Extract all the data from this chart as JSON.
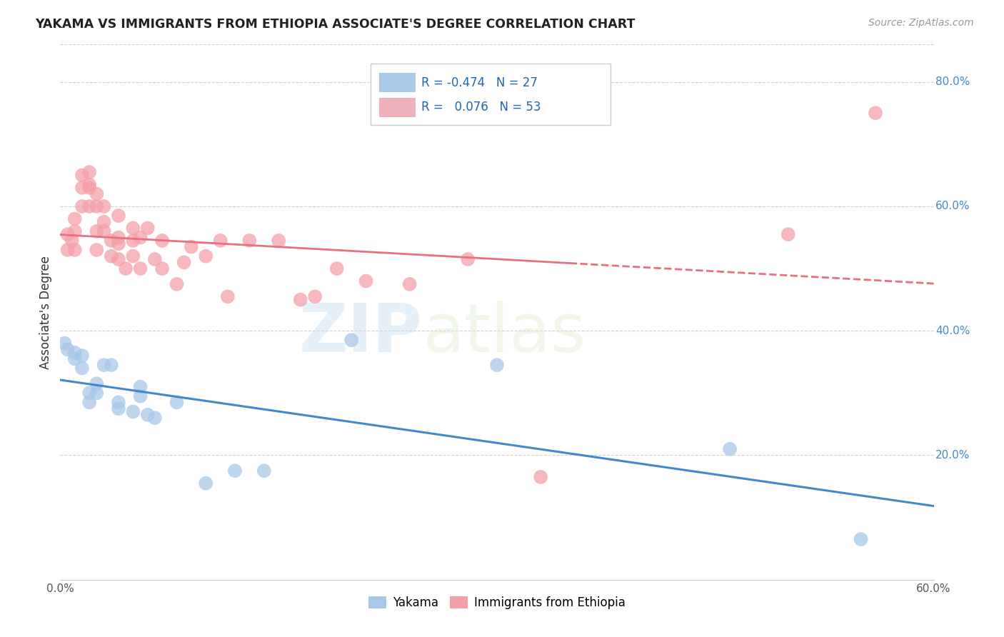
{
  "title": "YAKAMA VS IMMIGRANTS FROM ETHIOPIA ASSOCIATE'S DEGREE CORRELATION CHART",
  "source": "Source: ZipAtlas.com",
  "ylabel": "Associate's Degree",
  "watermark_zip": "ZIP",
  "watermark_atlas": "atlas",
  "xlim": [
    0.0,
    0.6
  ],
  "ylim": [
    0.0,
    0.86
  ],
  "legend_R_blue": "-0.474",
  "legend_N_blue": "27",
  "legend_R_pink": "0.076",
  "legend_N_pink": "53",
  "blue_scatter_color": "#a8c8e8",
  "pink_scatter_color": "#f4a0a8",
  "blue_line_color": "#4488cc",
  "pink_line_color": "#e87080",
  "bg_color": "#ffffff",
  "grid_color": "#cccccc",
  "right_tick_color": "#4488cc",
  "legend_box_blue": "#aac8e8",
  "legend_box_pink": "#f0b0bc",
  "yakama_x": [
    0.005,
    0.01,
    0.01,
    0.015,
    0.015,
    0.02,
    0.02,
    0.025,
    0.025,
    0.03,
    0.035,
    0.04,
    0.04,
    0.05,
    0.055,
    0.055,
    0.06,
    0.065,
    0.08,
    0.1,
    0.12,
    0.14,
    0.2,
    0.3,
    0.46,
    0.55,
    0.003
  ],
  "yakama_y": [
    0.37,
    0.355,
    0.365,
    0.36,
    0.34,
    0.285,
    0.3,
    0.3,
    0.315,
    0.345,
    0.345,
    0.275,
    0.285,
    0.27,
    0.295,
    0.31,
    0.265,
    0.26,
    0.285,
    0.155,
    0.175,
    0.175,
    0.385,
    0.345,
    0.21,
    0.065,
    0.38
  ],
  "ethiopia_x": [
    0.005,
    0.005,
    0.008,
    0.01,
    0.01,
    0.01,
    0.015,
    0.015,
    0.015,
    0.02,
    0.02,
    0.02,
    0.02,
    0.025,
    0.025,
    0.025,
    0.025,
    0.03,
    0.03,
    0.03,
    0.035,
    0.035,
    0.04,
    0.04,
    0.04,
    0.04,
    0.045,
    0.05,
    0.05,
    0.05,
    0.055,
    0.055,
    0.06,
    0.065,
    0.07,
    0.07,
    0.08,
    0.085,
    0.09,
    0.1,
    0.11,
    0.115,
    0.13,
    0.15,
    0.165,
    0.175,
    0.19,
    0.21,
    0.24,
    0.28,
    0.33,
    0.5,
    0.56
  ],
  "ethiopia_y": [
    0.555,
    0.53,
    0.545,
    0.58,
    0.56,
    0.53,
    0.63,
    0.6,
    0.65,
    0.63,
    0.6,
    0.635,
    0.655,
    0.6,
    0.62,
    0.56,
    0.53,
    0.56,
    0.6,
    0.575,
    0.545,
    0.52,
    0.585,
    0.55,
    0.515,
    0.54,
    0.5,
    0.545,
    0.52,
    0.565,
    0.55,
    0.5,
    0.565,
    0.515,
    0.545,
    0.5,
    0.475,
    0.51,
    0.535,
    0.52,
    0.545,
    0.455,
    0.545,
    0.545,
    0.45,
    0.455,
    0.5,
    0.48,
    0.475,
    0.515,
    0.165,
    0.555,
    0.75
  ]
}
